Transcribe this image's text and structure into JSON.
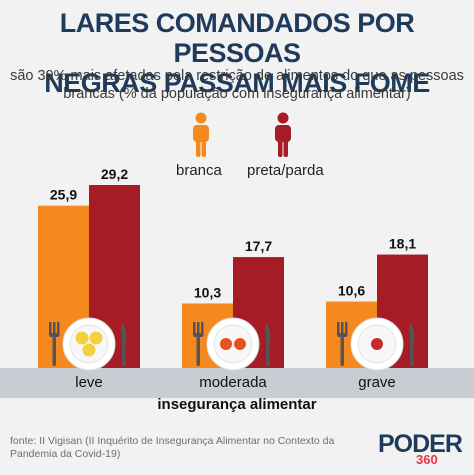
{
  "title_line1": "LARES COMANDADOS POR PESSOAS",
  "title_line2": "NEGRAS PASSAM MAIS FOME",
  "subtitle_line1": "são 39% mais afetadas pela restrição de alimentos do que as pessoas",
  "subtitle_line2": "brancas (% da população com insegurança alimentar)",
  "legend": {
    "branca": "branca",
    "preta_parda": "preta/parda"
  },
  "colors": {
    "branca": "#f5891f",
    "preta_parda": "#a51c24",
    "axis_band": "#c9ccd3",
    "title": "#1f3b5c"
  },
  "source_note": "fonte: II Vigisan (II Inquérito de Insegurança Alimentar no Contexto da Pandemia da Covid-19)",
  "logo": {
    "main": "PODER",
    "sub": "360"
  },
  "chart_data": {
    "type": "bar",
    "categories": [
      "leve",
      "moderada",
      "grave"
    ],
    "xlabel": "insegurança alimentar",
    "ylabel": "",
    "ylim": [
      0,
      30
    ],
    "series": [
      {
        "name": "branca",
        "values": [
          25.9,
          10.3,
          10.6
        ],
        "labels": [
          "25,9",
          "10,3",
          "10,6"
        ],
        "color": "#f5891f"
      },
      {
        "name": "preta/parda",
        "values": [
          29.2,
          17.7,
          18.1
        ],
        "labels": [
          "29,2",
          "17,7",
          "18,1"
        ],
        "color": "#a51c24"
      }
    ],
    "grid": false,
    "legend_position": "top-center"
  },
  "icons": [
    "branca-person-icon",
    "preta-parda-person-icon",
    "plate-fork-knife-icon"
  ]
}
